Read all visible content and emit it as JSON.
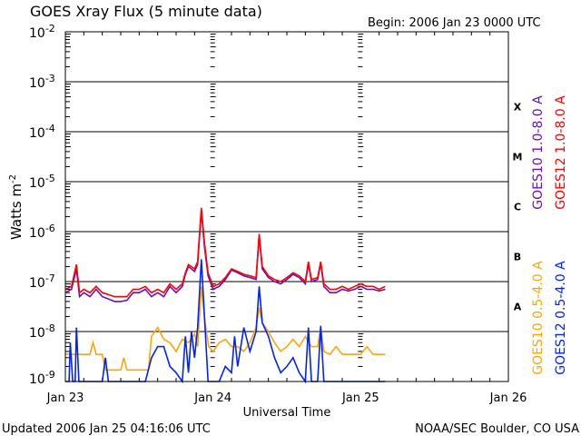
{
  "chart_data": {
    "type": "line",
    "title": "GOES Xray Flux (5 minute data)",
    "begin_label": "Begin:  2006 Jan 23 0000 UTC",
    "xlabel": "Universal Time",
    "ylabel": "Watts m",
    "ylabel_sup": "-2",
    "yscale": "log",
    "ylim": [
      1e-09,
      0.01
    ],
    "xlim_hours": [
      0,
      72
    ],
    "x_ticks": [
      {
        "hour": 0,
        "label": "Jan 23"
      },
      {
        "hour": 24,
        "label": "Jan 24"
      },
      {
        "hour": 48,
        "label": "Jan 25"
      },
      {
        "hour": 72,
        "label": "Jan 26"
      }
    ],
    "y_ticks": [
      {
        "exp": -2,
        "label": "10",
        "sup": "-2"
      },
      {
        "exp": -3,
        "label": "10",
        "sup": "-3"
      },
      {
        "exp": -4,
        "label": "10",
        "sup": "-4"
      },
      {
        "exp": -5,
        "label": "10",
        "sup": "-5"
      },
      {
        "exp": -6,
        "label": "10",
        "sup": "-6"
      },
      {
        "exp": -7,
        "label": "10",
        "sup": "-7"
      },
      {
        "exp": -8,
        "label": "10",
        "sup": "-8"
      },
      {
        "exp": -9,
        "label": "10",
        "sup": "-9"
      }
    ],
    "flare_classes": [
      {
        "label": "X",
        "exp": -4
      },
      {
        "label": "M",
        "exp": -5
      },
      {
        "label": "C",
        "exp": -6
      },
      {
        "label": "B",
        "exp": -7
      },
      {
        "label": "A",
        "exp": -8
      }
    ],
    "grid": "horizontal at decades 1e-8 to 1e-3",
    "legend_placement": "right, rotated",
    "legend": [
      {
        "name": "GOES10 1.0-8.0 A",
        "color": "#6a0fc0"
      },
      {
        "name": "GOES12 1.0-8.0 A",
        "color": "#ff0000"
      },
      {
        "name": "GOES10 0.5-4.0 A",
        "color": "#ffa500"
      },
      {
        "name": "GOES12 0.5-4.0 A",
        "color": "#0022ff"
      }
    ],
    "series": [
      {
        "name": "GOES10 1.0-8.0 A",
        "color": "#6a0fc0",
        "points": [
          [
            0,
            6e-08
          ],
          [
            1,
            7e-08
          ],
          [
            1.8,
            1.8e-07
          ],
          [
            2.3,
            5e-08
          ],
          [
            3,
            6e-08
          ],
          [
            4,
            5e-08
          ],
          [
            5,
            7e-08
          ],
          [
            6,
            5e-08
          ],
          [
            7,
            4.5e-08
          ],
          [
            8,
            4e-08
          ],
          [
            9,
            4e-08
          ],
          [
            10,
            4.2e-08
          ],
          [
            11,
            6e-08
          ],
          [
            12,
            6e-08
          ],
          [
            13,
            7e-08
          ],
          [
            14,
            5e-08
          ],
          [
            15,
            6e-08
          ],
          [
            16,
            5e-08
          ],
          [
            17,
            8e-08
          ],
          [
            18,
            6e-08
          ],
          [
            19,
            8e-08
          ],
          [
            19.5,
            1.4e-07
          ],
          [
            20,
            2e-07
          ],
          [
            21,
            1.6e-07
          ],
          [
            21.5,
            2.2e-07
          ],
          [
            22.1,
            2.6e-06
          ],
          [
            22.6,
            5e-07
          ],
          [
            23.2,
            1.3e-07
          ],
          [
            24,
            7e-08
          ],
          [
            25,
            8e-08
          ],
          [
            26,
            1.1e-07
          ],
          [
            27,
            1.7e-07
          ],
          [
            28,
            1.5e-07
          ],
          [
            29,
            1.3e-07
          ],
          [
            30,
            1.2e-07
          ],
          [
            31,
            1.1e-07
          ],
          [
            31.5,
            8e-07
          ],
          [
            32,
            1.8e-07
          ],
          [
            33,
            1.2e-07
          ],
          [
            34,
            1e-07
          ],
          [
            35,
            9e-08
          ],
          [
            36,
            1.1e-07
          ],
          [
            37,
            1.4e-07
          ],
          [
            38,
            1.2e-07
          ],
          [
            39,
            9e-08
          ],
          [
            39.5,
            2.3e-07
          ],
          [
            40,
            1e-07
          ],
          [
            41,
            1.1e-07
          ],
          [
            41.5,
            2.3e-07
          ],
          [
            42,
            8e-08
          ],
          [
            43,
            6e-08
          ],
          [
            44,
            6e-08
          ],
          [
            45,
            7e-08
          ],
          [
            46,
            6.5e-08
          ],
          [
            47,
            7e-08
          ],
          [
            48,
            8e-08
          ],
          [
            49,
            7e-08
          ],
          [
            50,
            7e-08
          ],
          [
            51,
            6.5e-08
          ],
          [
            52,
            7e-08
          ]
        ]
      },
      {
        "name": "GOES12 1.0-8.0 A",
        "color": "#ff0000",
        "points": [
          [
            0,
            7e-08
          ],
          [
            1,
            8e-08
          ],
          [
            1.8,
            2.2e-07
          ],
          [
            2.3,
            6e-08
          ],
          [
            3,
            7e-08
          ],
          [
            4,
            6e-08
          ],
          [
            5,
            8e-08
          ],
          [
            6,
            6e-08
          ],
          [
            7,
            5.5e-08
          ],
          [
            8,
            5e-08
          ],
          [
            9,
            5e-08
          ],
          [
            10,
            5e-08
          ],
          [
            11,
            7e-08
          ],
          [
            12,
            7e-08
          ],
          [
            13,
            8e-08
          ],
          [
            14,
            6e-08
          ],
          [
            15,
            7e-08
          ],
          [
            16,
            6e-08
          ],
          [
            17,
            9e-08
          ],
          [
            18,
            7e-08
          ],
          [
            19,
            9e-08
          ],
          [
            19.5,
            1.5e-07
          ],
          [
            20,
            2.2e-07
          ],
          [
            21,
            1.8e-07
          ],
          [
            21.5,
            2.5e-07
          ],
          [
            22.1,
            3e-06
          ],
          [
            22.6,
            6e-07
          ],
          [
            23.2,
            1.5e-07
          ],
          [
            24,
            8e-08
          ],
          [
            25,
            9e-08
          ],
          [
            26,
            1.2e-07
          ],
          [
            27,
            1.8e-07
          ],
          [
            28,
            1.6e-07
          ],
          [
            29,
            1.4e-07
          ],
          [
            30,
            1.3e-07
          ],
          [
            31,
            1.2e-07
          ],
          [
            31.5,
            9e-07
          ],
          [
            32,
            2e-07
          ],
          [
            33,
            1.3e-07
          ],
          [
            34,
            1.1e-07
          ],
          [
            35,
            1e-07
          ],
          [
            36,
            1.2e-07
          ],
          [
            37,
            1.5e-07
          ],
          [
            38,
            1.3e-07
          ],
          [
            39,
            1e-07
          ],
          [
            39.5,
            2.5e-07
          ],
          [
            40,
            1.1e-07
          ],
          [
            41,
            1.2e-07
          ],
          [
            41.5,
            2.5e-07
          ],
          [
            42,
            9e-08
          ],
          [
            43,
            7e-08
          ],
          [
            44,
            7e-08
          ],
          [
            45,
            8e-08
          ],
          [
            46,
            7e-08
          ],
          [
            47,
            8e-08
          ],
          [
            48,
            9e-08
          ],
          [
            49,
            8e-08
          ],
          [
            50,
            8e-08
          ],
          [
            51,
            7e-08
          ],
          [
            52,
            8e-08
          ]
        ]
      },
      {
        "name": "GOES10 0.5-4.0 A",
        "color": "#ffa500",
        "points": [
          [
            0,
            3.5e-09
          ],
          [
            4,
            3.5e-09
          ],
          [
            4.5,
            6e-09
          ],
          [
            5,
            3.5e-09
          ],
          [
            6,
            3.5e-09
          ],
          [
            6.5,
            1.7e-09
          ],
          [
            9,
            1.7e-09
          ],
          [
            9.5,
            3e-09
          ],
          [
            10,
            1.7e-09
          ],
          [
            13.5,
            1.7e-09
          ],
          [
            14,
            8e-09
          ],
          [
            15,
            1.2e-08
          ],
          [
            16,
            7e-09
          ],
          [
            17,
            6e-09
          ],
          [
            18,
            4e-09
          ],
          [
            19,
            7e-09
          ],
          [
            20,
            6e-09
          ],
          [
            21,
            9e-09
          ],
          [
            21.5,
            5e-09
          ],
          [
            22.1,
            8e-08
          ],
          [
            22.7,
            1.5e-08
          ],
          [
            23.3,
            5e-09
          ],
          [
            24,
            4e-09
          ],
          [
            25,
            6e-09
          ],
          [
            26,
            7e-09
          ],
          [
            27,
            5e-09
          ],
          [
            28,
            5e-09
          ],
          [
            29,
            4e-09
          ],
          [
            30,
            6e-09
          ],
          [
            31,
            1.2e-08
          ],
          [
            31.5,
            3e-08
          ],
          [
            32,
            1.5e-08
          ],
          [
            33,
            1e-08
          ],
          [
            34,
            6e-09
          ],
          [
            35,
            4e-09
          ],
          [
            36,
            5e-09
          ],
          [
            37,
            7e-09
          ],
          [
            38,
            5e-09
          ],
          [
            39,
            8e-09
          ],
          [
            40,
            5e-09
          ],
          [
            41,
            5e-09
          ],
          [
            41.5,
            1.2e-08
          ],
          [
            42,
            4e-09
          ],
          [
            43,
            3.5e-09
          ],
          [
            44,
            5e-09
          ],
          [
            45,
            3.5e-09
          ],
          [
            46,
            3.5e-09
          ],
          [
            48,
            3.5e-09
          ],
          [
            49,
            5e-09
          ],
          [
            50,
            3.5e-09
          ],
          [
            52,
            3.5e-09
          ]
        ]
      },
      {
        "name": "GOES12 0.5-4.0 A",
        "color": "#0022ff",
        "points": [
          [
            0,
            5e-10
          ],
          [
            0.6,
            5e-10
          ],
          [
            0.8,
            6e-09
          ],
          [
            1.2,
            5e-10
          ],
          [
            1.6,
            5e-10
          ],
          [
            1.8,
            1.2e-08
          ],
          [
            2.2,
            5e-10
          ],
          [
            6,
            5e-10
          ],
          [
            6.5,
            3e-09
          ],
          [
            7,
            5e-10
          ],
          [
            10,
            5e-10
          ],
          [
            13,
            1e-09
          ],
          [
            14,
            3e-09
          ],
          [
            15,
            5e-09
          ],
          [
            16,
            5e-09
          ],
          [
            17,
            2e-09
          ],
          [
            18,
            1.5e-09
          ],
          [
            19,
            5e-10
          ],
          [
            19.5,
            8e-09
          ],
          [
            20,
            1.5e-09
          ],
          [
            20.5,
            1e-08
          ],
          [
            21,
            3e-09
          ],
          [
            21.5,
            1.2e-08
          ],
          [
            22.1,
            2.8e-07
          ],
          [
            22.6,
            2e-08
          ],
          [
            23.2,
            5e-10
          ],
          [
            25,
            5e-10
          ],
          [
            26,
            2e-09
          ],
          [
            27,
            1.5e-09
          ],
          [
            27.5,
            8e-09
          ],
          [
            28,
            2e-09
          ],
          [
            29,
            1.2e-08
          ],
          [
            30,
            4e-09
          ],
          [
            31,
            1e-08
          ],
          [
            31.5,
            8e-08
          ],
          [
            32,
            1.5e-08
          ],
          [
            33,
            8e-09
          ],
          [
            34,
            3e-09
          ],
          [
            35,
            1.5e-09
          ],
          [
            36,
            2e-09
          ],
          [
            37,
            3e-09
          ],
          [
            38,
            1.5e-09
          ],
          [
            39,
            5e-10
          ],
          [
            39.5,
            1.2e-08
          ],
          [
            40,
            5e-10
          ],
          [
            41,
            1e-09
          ],
          [
            41.5,
            1.3e-08
          ],
          [
            42,
            5e-10
          ],
          [
            43,
            5e-10
          ],
          [
            52,
            5e-10
          ]
        ]
      }
    ]
  },
  "footer": {
    "updated": "Updated 2006 Jan 25 04:16:06 UTC",
    "credit": "NOAA/SEC Boulder, CO USA"
  }
}
